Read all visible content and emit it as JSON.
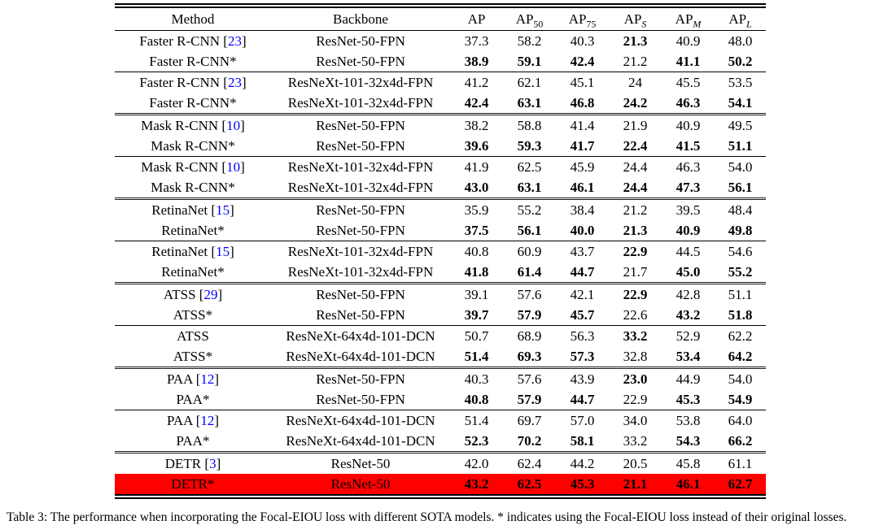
{
  "colors": {
    "highlight_bg": "#ff0000",
    "citation": "#0000ff",
    "text": "#000000"
  },
  "table": {
    "header": {
      "method": "Method",
      "backbone": "Backbone",
      "metrics": [
        {
          "text": "AP",
          "sub": "",
          "italic": false
        },
        {
          "text": "AP",
          "sub": "50",
          "italic": false
        },
        {
          "text": "AP",
          "sub": "75",
          "italic": false
        },
        {
          "text": "AP",
          "sub": "S",
          "italic": true
        },
        {
          "text": "AP",
          "sub": "M",
          "italic": true
        },
        {
          "text": "AP",
          "sub": "L",
          "italic": true
        }
      ]
    },
    "rows": [
      {
        "method": "Faster R-CNN",
        "cite": "23",
        "backbone": "ResNet-50-FPN",
        "values": [
          "37.3",
          "58.2",
          "40.3",
          "21.3",
          "40.9",
          "48.0"
        ],
        "bold": [
          false,
          false,
          false,
          true,
          false,
          false
        ],
        "rule_above": "none",
        "highlight": false
      },
      {
        "method": "Faster R-CNN*",
        "cite": null,
        "backbone": "ResNet-50-FPN",
        "values": [
          "38.9",
          "59.1",
          "42.4",
          "21.2",
          "41.1",
          "50.2"
        ],
        "bold": [
          true,
          true,
          true,
          false,
          true,
          true
        ],
        "rule_above": "none",
        "highlight": false
      },
      {
        "method": "Faster R-CNN",
        "cite": "23",
        "backbone": "ResNeXt-101-32x4d-FPN",
        "values": [
          "41.2",
          "62.1",
          "45.1",
          "24",
          "45.5",
          "53.5"
        ],
        "bold": [
          false,
          false,
          false,
          false,
          false,
          false
        ],
        "rule_above": "thin",
        "highlight": false
      },
      {
        "method": "Faster R-CNN*",
        "cite": null,
        "backbone": "ResNeXt-101-32x4d-FPN",
        "values": [
          "42.4",
          "63.1",
          "46.8",
          "24.2",
          "46.3",
          "54.1"
        ],
        "bold": [
          true,
          true,
          true,
          true,
          true,
          true
        ],
        "rule_above": "none",
        "highlight": false
      },
      {
        "method": "Mask R-CNN",
        "cite": "10",
        "backbone": "ResNet-50-FPN",
        "values": [
          "38.2",
          "58.8",
          "41.4",
          "21.9",
          "40.9",
          "49.5"
        ],
        "bold": [
          false,
          false,
          false,
          false,
          false,
          false
        ],
        "rule_above": "thick",
        "highlight": false
      },
      {
        "method": "Mask R-CNN*",
        "cite": null,
        "backbone": "ResNet-50-FPN",
        "values": [
          "39.6",
          "59.3",
          "41.7",
          "22.4",
          "41.5",
          "51.1"
        ],
        "bold": [
          true,
          true,
          true,
          true,
          true,
          true
        ],
        "rule_above": "none",
        "highlight": false
      },
      {
        "method": "Mask R-CNN",
        "cite": "10",
        "backbone": "ResNeXt-101-32x4d-FPN",
        "values": [
          "41.9",
          "62.5",
          "45.9",
          "24.4",
          "46.3",
          "54.0"
        ],
        "bold": [
          false,
          false,
          false,
          false,
          false,
          false
        ],
        "rule_above": "thin",
        "highlight": false
      },
      {
        "method": "Mask R-CNN*",
        "cite": null,
        "backbone": "ResNeXt-101-32x4d-FPN",
        "values": [
          "43.0",
          "63.1",
          "46.1",
          "24.4",
          "47.3",
          "56.1"
        ],
        "bold": [
          true,
          true,
          true,
          true,
          true,
          true
        ],
        "rule_above": "none",
        "highlight": false
      },
      {
        "method": "RetinaNet",
        "cite": "15",
        "backbone": "ResNet-50-FPN",
        "values": [
          "35.9",
          "55.2",
          "38.4",
          "21.2",
          "39.5",
          "48.4"
        ],
        "bold": [
          false,
          false,
          false,
          false,
          false,
          false
        ],
        "rule_above": "thick",
        "highlight": false
      },
      {
        "method": "RetinaNet*",
        "cite": null,
        "backbone": "ResNet-50-FPN",
        "values": [
          "37.5",
          "56.1",
          "40.0",
          "21.3",
          "40.9",
          "49.8"
        ],
        "bold": [
          true,
          true,
          true,
          true,
          true,
          true
        ],
        "rule_above": "none",
        "highlight": false
      },
      {
        "method": "RetinaNet",
        "cite": "15",
        "backbone": "ResNeXt-101-32x4d-FPN",
        "values": [
          "40.8",
          "60.9",
          "43.7",
          "22.9",
          "44.5",
          "54.6"
        ],
        "bold": [
          false,
          false,
          false,
          true,
          false,
          false
        ],
        "rule_above": "thin",
        "highlight": false
      },
      {
        "method": "RetinaNet*",
        "cite": null,
        "backbone": "ResNeXt-101-32x4d-FPN",
        "values": [
          "41.8",
          "61.4",
          "44.7",
          "21.7",
          "45.0",
          "55.2"
        ],
        "bold": [
          true,
          true,
          true,
          false,
          true,
          true
        ],
        "rule_above": "none",
        "highlight": false
      },
      {
        "method": "ATSS",
        "cite": "29",
        "backbone": "ResNet-50-FPN",
        "values": [
          "39.1",
          "57.6",
          "42.1",
          "22.9",
          "42.8",
          "51.1"
        ],
        "bold": [
          false,
          false,
          false,
          true,
          false,
          false
        ],
        "rule_above": "thick",
        "highlight": false
      },
      {
        "method": "ATSS*",
        "cite": null,
        "backbone": "ResNet-50-FPN",
        "values": [
          "39.7",
          "57.9",
          "45.7",
          "22.6",
          "43.2",
          "51.8"
        ],
        "bold": [
          true,
          true,
          true,
          false,
          true,
          true
        ],
        "rule_above": "none",
        "highlight": false
      },
      {
        "method": "ATSS",
        "cite": null,
        "backbone": "ResNeXt-64x4d-101-DCN",
        "values": [
          "50.7",
          "68.9",
          "56.3",
          "33.2",
          "52.9",
          "62.2"
        ],
        "bold": [
          false,
          false,
          false,
          true,
          false,
          false
        ],
        "rule_above": "thin",
        "highlight": false
      },
      {
        "method": "ATSS*",
        "cite": null,
        "backbone": "ResNeXt-64x4d-101-DCN",
        "values": [
          "51.4",
          "69.3",
          "57.3",
          "32.8",
          "53.4",
          "64.2"
        ],
        "bold": [
          true,
          true,
          true,
          false,
          true,
          true
        ],
        "rule_above": "none",
        "highlight": false
      },
      {
        "method": "PAA",
        "cite": "12",
        "backbone": "ResNet-50-FPN",
        "values": [
          "40.3",
          "57.6",
          "43.9",
          "23.0",
          "44.9",
          "54.0"
        ],
        "bold": [
          false,
          false,
          false,
          true,
          false,
          false
        ],
        "rule_above": "thick",
        "highlight": false
      },
      {
        "method": "PAA*",
        "cite": null,
        "backbone": "ResNet-50-FPN",
        "values": [
          "40.8",
          "57.9",
          "44.7",
          "22.9",
          "45.3",
          "54.9"
        ],
        "bold": [
          true,
          true,
          true,
          false,
          true,
          true
        ],
        "rule_above": "none",
        "highlight": false
      },
      {
        "method": "PAA",
        "cite": "12",
        "backbone": "ResNeXt-64x4d-101-DCN",
        "values": [
          "51.4",
          "69.7",
          "57.0",
          "34.0",
          "53.8",
          "64.0"
        ],
        "bold": [
          false,
          false,
          false,
          false,
          false,
          false
        ],
        "rule_above": "thin",
        "highlight": false
      },
      {
        "method": "PAA*",
        "cite": null,
        "backbone": "ResNeXt-64x4d-101-DCN",
        "values": [
          "52.3",
          "70.2",
          "58.1",
          "33.2",
          "54.3",
          "66.2"
        ],
        "bold": [
          true,
          true,
          true,
          false,
          true,
          true
        ],
        "rule_above": "none",
        "highlight": false
      },
      {
        "method": "DETR",
        "cite": "3",
        "backbone": "ResNet-50",
        "values": [
          "42.0",
          "62.4",
          "44.2",
          "20.5",
          "45.8",
          "61.1"
        ],
        "bold": [
          false,
          false,
          false,
          false,
          false,
          false
        ],
        "rule_above": "thick",
        "highlight": false
      },
      {
        "method": "DETR*",
        "cite": null,
        "backbone": "ResNet-50",
        "values": [
          "43.2",
          "62.5",
          "45.3",
          "21.1",
          "46.1",
          "62.7"
        ],
        "bold": [
          true,
          true,
          true,
          true,
          true,
          true
        ],
        "rule_above": "none",
        "highlight": true
      }
    ]
  },
  "caption": {
    "text": "Table 3: The performance when incorporating the Focal-EIOU loss with different SOTA models. * indicates using the Focal-EIOU loss instead of their original losses."
  }
}
